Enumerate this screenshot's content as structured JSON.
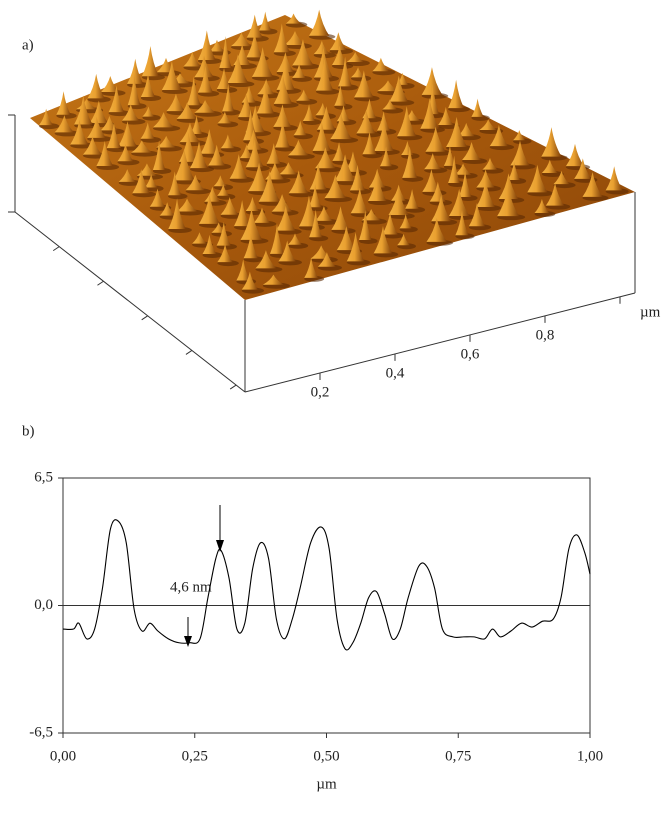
{
  "panel_a": {
    "label": "a)",
    "ticks": [
      "0,2",
      "0,4",
      "0,6",
      "0,8"
    ],
    "unit": "µm"
  },
  "chart_data": {
    "type": "line",
    "label": "b)",
    "x_label": "µm",
    "annotation": "4,6 nm",
    "color": "#000000",
    "x": [
      0,
      0.02,
      0.03,
      0.045,
      0.06,
      0.075,
      0.09,
      0.105,
      0.12,
      0.135,
      0.15,
      0.165,
      0.18,
      0.2,
      0.22,
      0.24,
      0.26,
      0.275,
      0.29,
      0.3,
      0.315,
      0.33,
      0.345,
      0.36,
      0.375,
      0.39,
      0.405,
      0.42,
      0.435,
      0.45,
      0.47,
      0.49,
      0.505,
      0.52,
      0.535,
      0.55,
      0.565,
      0.58,
      0.595,
      0.61,
      0.625,
      0.64,
      0.655,
      0.675,
      0.69,
      0.705,
      0.72,
      0.74,
      0.76,
      0.78,
      0.8,
      0.815,
      0.83,
      0.85,
      0.87,
      0.89,
      0.91,
      0.93,
      0.945,
      0.96,
      0.975,
      0.99,
      1.0
    ],
    "values": [
      -1.2,
      -1.2,
      -0.9,
      -1.7,
      -1.2,
      0.9,
      3.9,
      4.3,
      3.2,
      -0.2,
      -1.3,
      -0.9,
      -1.3,
      -1.7,
      -1.9,
      -1.9,
      -1.7,
      0.4,
      2.4,
      2.8,
      1.4,
      -1.2,
      -0.9,
      1.9,
      3.2,
      2.4,
      -0.7,
      -1.7,
      -0.7,
      0.9,
      3.2,
      4.0,
      2.9,
      -0.7,
      -2.2,
      -1.9,
      -0.9,
      0.4,
      0.7,
      -0.4,
      -1.7,
      -1.2,
      0.4,
      2.0,
      2.0,
      0.9,
      -1.2,
      -1.6,
      -1.6,
      -1.6,
      -1.7,
      -1.2,
      -1.6,
      -1.3,
      -0.9,
      -1.1,
      -0.8,
      -0.7,
      0.4,
      2.9,
      3.6,
      2.7,
      1.6
    ],
    "xlim": [
      0,
      1
    ],
    "ylim": [
      -6.5,
      6.5
    ],
    "xticks": [
      {
        "value": 0,
        "label": "0,00"
      },
      {
        "value": 0.25,
        "label": "0,25"
      },
      {
        "value": 0.5,
        "label": "0,50"
      },
      {
        "value": 0.75,
        "label": "0,75"
      },
      {
        "value": 1,
        "label": "1,00"
      }
    ],
    "yticks": [
      {
        "value": 6.5,
        "label": "6,5"
      },
      {
        "value": 0,
        "label": "0,0"
      },
      {
        "value": -6.5,
        "label": "-6,5"
      }
    ]
  }
}
